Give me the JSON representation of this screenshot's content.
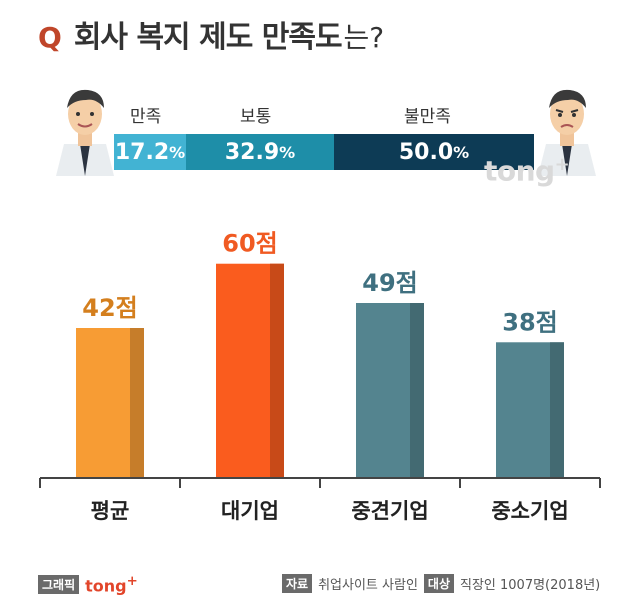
{
  "header": {
    "q": "Q",
    "title": "회사 복지 제도 만족도",
    "suffix": "는?"
  },
  "survey": {
    "labels": [
      "만족",
      "보통",
      "불만족"
    ],
    "values": [
      "17.2",
      "32.9",
      "50.0"
    ],
    "unit": "%",
    "colors": [
      "#42b3d3",
      "#1e8ea8",
      "#0d3b55"
    ]
  },
  "watermark": {
    "text": "tong",
    "plus": "+"
  },
  "chart_data": {
    "type": "bar",
    "categories": [
      "평균",
      "대기업",
      "중견기업",
      "중소기업"
    ],
    "values": [
      42,
      60,
      49,
      38
    ],
    "data_labels": [
      "42점",
      "60점",
      "49점",
      "38점"
    ],
    "colors": [
      "#f79c34",
      "#fa5c1e",
      "#54848f",
      "#54848f"
    ],
    "label_colors": [
      "#d47f1e",
      "#f05a22",
      "#3f7080",
      "#3f7080"
    ],
    "ylim": [
      0,
      70
    ],
    "grid": false,
    "title": "",
    "xlabel": "",
    "ylabel": ""
  },
  "footer": {
    "left_tag": "그래픽",
    "brand": "tong",
    "brand_plus": "+",
    "source_tag": "자료",
    "source": "취업사이트 사람인",
    "target_tag": "대상",
    "target": "직장인 1007명(2018년)"
  }
}
